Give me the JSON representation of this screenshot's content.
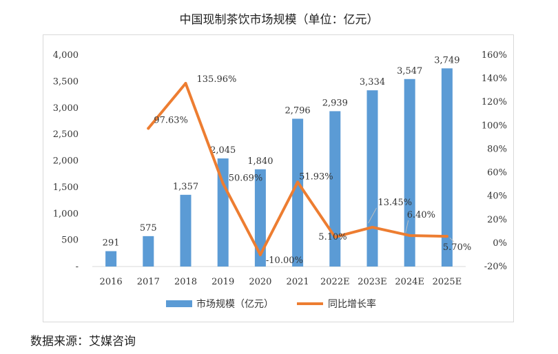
{
  "title": "中国现制茶饮市场规模（单位：亿元）",
  "source": "数据来源：艾媒咨询",
  "chart_data": {
    "type": "bar+line",
    "categories": [
      "2016",
      "2017",
      "2018",
      "2019",
      "2020",
      "2021",
      "2022E",
      "2023E",
      "2024E",
      "2025E"
    ],
    "series": [
      {
        "name": "市场规模（亿元）",
        "type": "bar",
        "axis": "left",
        "color": "#5b9bd5",
        "values": [
          291,
          575,
          1357,
          2045,
          1840,
          2796,
          2939,
          3334,
          3547,
          3749
        ],
        "labels": [
          "291",
          "575",
          "1,357",
          "2,045",
          "1,840",
          "2,796",
          "2,939",
          "3,334",
          "3,547",
          "3,749"
        ]
      },
      {
        "name": "同比增长率",
        "type": "line",
        "axis": "right",
        "color": "#ed7d31",
        "values": [
          null,
          97.63,
          135.96,
          50.69,
          -10.0,
          51.93,
          5.1,
          13.45,
          6.4,
          5.7
        ],
        "labels": [
          "",
          "97.63%",
          "135.96%",
          "50.69%",
          "-10.00%",
          "51.93%",
          "5.10%",
          "13.45%",
          "6.40%",
          "5.70%"
        ]
      }
    ],
    "y_left": {
      "min": 0,
      "max": 4000,
      "ticks": [
        0,
        500,
        1000,
        1500,
        2000,
        2500,
        3000,
        3500,
        4000
      ],
      "tick_labels": [
        "-",
        "500",
        "1,000",
        "1,500",
        "2,000",
        "2,500",
        "3,000",
        "3,500",
        "4,000"
      ]
    },
    "y_right": {
      "min": -20,
      "max": 160,
      "ticks": [
        -20,
        0,
        20,
        40,
        60,
        80,
        100,
        120,
        140,
        160
      ],
      "tick_labels": [
        "-20%",
        "0%",
        "20%",
        "40%",
        "60%",
        "80%",
        "100%",
        "120%",
        "140%",
        "160%"
      ]
    },
    "grid": false,
    "legend": "bottom"
  }
}
